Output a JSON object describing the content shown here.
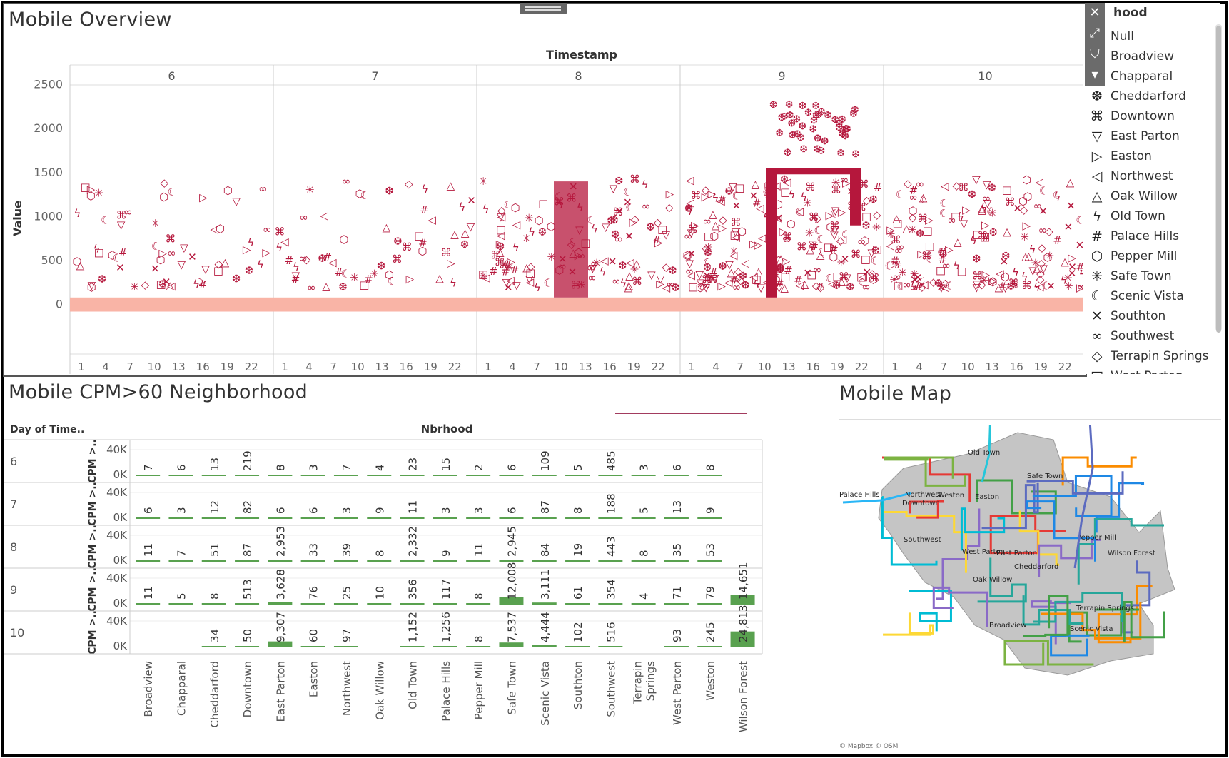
{
  "top": {
    "title": "Mobile Overview",
    "column_header": "Timestamp",
    "y_label": "Value",
    "days": [
      "6",
      "7",
      "8",
      "9",
      "10"
    ],
    "y_ticks": [
      "2500",
      "2000",
      "1500",
      "1000",
      "500",
      "0"
    ],
    "hour_ticks": [
      "1",
      "4",
      "7",
      "10",
      "13",
      "16",
      "19",
      "22"
    ]
  },
  "legend": {
    "title": "Nbrhood",
    "title_visible": "hood",
    "items": [
      {
        "label": "Null",
        "symbol": ""
      },
      {
        "label": "Broadview",
        "symbol": ""
      },
      {
        "label": "Chapparal",
        "symbol": ""
      },
      {
        "label": "Cheddarford",
        "symbol": "❆"
      },
      {
        "label": "Downtown",
        "symbol": "⌘"
      },
      {
        "label": "East Parton",
        "symbol": "▽"
      },
      {
        "label": "Easton",
        "symbol": "▷"
      },
      {
        "label": "Northwest",
        "symbol": "◁"
      },
      {
        "label": "Oak Willow",
        "symbol": "△"
      },
      {
        "label": "Old Town",
        "symbol": "ϟ"
      },
      {
        "label": "Palace Hills",
        "symbol": "#"
      },
      {
        "label": "Pepper Mill",
        "symbol": "⬡"
      },
      {
        "label": "Safe Town",
        "symbol": "✳"
      },
      {
        "label": "Scenic Vista",
        "symbol": "☾"
      },
      {
        "label": "Southton",
        "symbol": "✕"
      },
      {
        "label": "Southwest",
        "symbol": "∞"
      },
      {
        "label": "Terrapin Springs",
        "symbol": "◇"
      },
      {
        "label": "West Parton",
        "symbol": "□"
      }
    ],
    "tools": {
      "close": "✕",
      "popout": "⤢",
      "filter": "⛉",
      "menu": "▾"
    },
    "mark_color": "#b5173c",
    "low_band_color": "#f9b4a6"
  },
  "middle": {
    "title": "Mobile CPM>60 Neighborhood",
    "row_header": "Day of Time..",
    "col_header": "Nbrhood",
    "axis_label": "CPM >..",
    "axis_ticks": [
      "40K",
      "0K"
    ],
    "bar_color": "#59a14f",
    "columns": [
      "Broadview",
      "Chapparal",
      "Cheddarford",
      "Downtown",
      "East Parton",
      "Easton",
      "Northwest",
      "Oak Willow",
      "Old Town",
      "Palace Hills",
      "Pepper Mill",
      "Safe Town",
      "Scenic Vista",
      "Southton",
      "Southwest",
      "Terrapin Springs",
      "West Parton",
      "Weston",
      "Wilson Forest"
    ],
    "columns_wrapped": [
      [
        "Broadview"
      ],
      [
        "Chapparal"
      ],
      [
        "Cheddarford"
      ],
      [
        "Downtown"
      ],
      [
        "East Parton"
      ],
      [
        "Easton"
      ],
      [
        "Northwest"
      ],
      [
        "Oak Willow"
      ],
      [
        "Old Town"
      ],
      [
        "Palace Hills"
      ],
      [
        "Pepper Mill"
      ],
      [
        "Safe Town"
      ],
      [
        "Scenic Vista"
      ],
      [
        "Southton"
      ],
      [
        "Southwest"
      ],
      [
        "Terrapin",
        "Springs"
      ],
      [
        "West Parton"
      ],
      [
        "Weston"
      ],
      [
        "Wilson Forest"
      ]
    ],
    "rows": [
      {
        "day": "6",
        "values": [
          7,
          6,
          13,
          219,
          8,
          3,
          7,
          4,
          23,
          15,
          2,
          6,
          109,
          5,
          485,
          3,
          6,
          8,
          null
        ]
      },
      {
        "day": "7",
        "values": [
          6,
          3,
          12,
          82,
          6,
          6,
          3,
          9,
          11,
          3,
          3,
          6,
          87,
          8,
          188,
          5,
          13,
          9,
          null
        ]
      },
      {
        "day": "8",
        "values": [
          11,
          7,
          51,
          87,
          2953,
          33,
          39,
          8,
          2332,
          9,
          11,
          2945,
          84,
          19,
          443,
          8,
          35,
          53,
          null
        ]
      },
      {
        "day": "9",
        "values": [
          11,
          5,
          8,
          513,
          3628,
          76,
          25,
          10,
          356,
          117,
          8,
          12008,
          3111,
          61,
          354,
          4,
          71,
          79,
          14651
        ]
      },
      {
        "day": "10",
        "values": [
          null,
          null,
          34,
          50,
          9307,
          60,
          97,
          null,
          1152,
          1256,
          8,
          7537,
          4444,
          102,
          516,
          null,
          93,
          245,
          24813
        ]
      }
    ],
    "axis_max": 40000
  },
  "map": {
    "title": "Mobile Map",
    "attribution": "© Mapbox © OSM",
    "labels": [
      "Old Town",
      "Northwest",
      "Safe Town",
      "Palace Hills",
      "Weston",
      "Easton",
      "Downtown",
      "Southwest",
      "Pepper Mill",
      "West Parton",
      "East Parton",
      "Wilson Forest",
      "Cheddarford",
      "Oak Willow",
      "Terrapin Springs",
      "Broadview",
      "Scenic Vista"
    ]
  }
}
